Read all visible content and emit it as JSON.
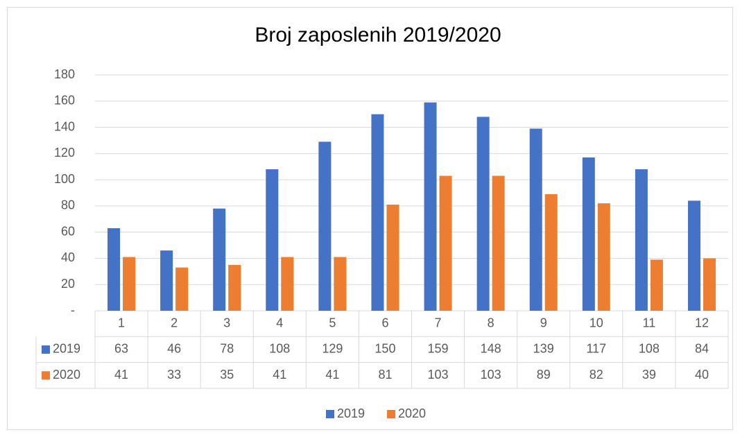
{
  "chart_data": {
    "type": "bar",
    "title": "Broj zaposlenih 2019/2020",
    "categories": [
      "1",
      "2",
      "3",
      "4",
      "5",
      "6",
      "7",
      "8",
      "9",
      "10",
      "11",
      "12"
    ],
    "series": [
      {
        "name": "2019",
        "color": "#4472c4",
        "values": [
          63,
          46,
          78,
          108,
          129,
          150,
          159,
          148,
          139,
          117,
          108,
          84
        ]
      },
      {
        "name": "2020",
        "color": "#ed7d31",
        "values": [
          41,
          33,
          35,
          41,
          41,
          81,
          103,
          103,
          89,
          82,
          39,
          40
        ]
      }
    ],
    "ylim": [
      0,
      180
    ],
    "yticks": [
      {
        "value": 0,
        "label": "-"
      },
      20,
      40,
      60,
      80,
      100,
      120,
      140,
      160,
      180
    ],
    "grid": true,
    "legend": "bottom"
  }
}
